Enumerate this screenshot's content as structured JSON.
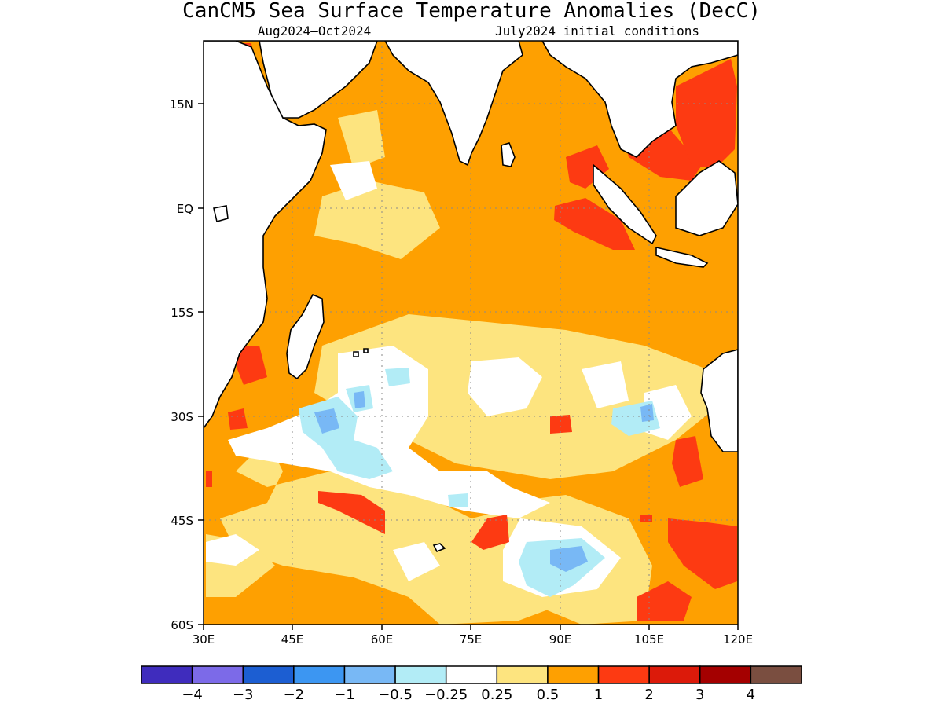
{
  "figure": {
    "title": "CanCM5 Sea Surface Temperature Anomalies (DecC)",
    "period": "Aug2024–Oct2024",
    "initial_conditions": "July2024 initial conditions"
  },
  "map": {
    "region": "Indian Ocean",
    "lon_range": [
      30,
      120
    ],
    "lat_range": [
      -60,
      24
    ],
    "lon_ticks": [
      "30E",
      "45E",
      "60E",
      "75E",
      "90E",
      "105E",
      "120E"
    ],
    "lat_ticks": [
      "15N",
      "EQ",
      "15S",
      "30S",
      "45S",
      "60S"
    ],
    "grid": true
  },
  "colorbar": {
    "labels": [
      "−4",
      "−3",
      "−2",
      "−1",
      "−0.5",
      "−0.25",
      "0.25",
      "0.5",
      "1",
      "2",
      "3",
      "4"
    ],
    "colors": [
      "#3f2cbd",
      "#7c6ae8",
      "#1c5ed2",
      "#3c96f2",
      "#78b8f5",
      "#b2ecf6",
      "#ffffff",
      "#fde47f",
      "#fea001",
      "#fd3a12",
      "#dc1a0a",
      "#a40000",
      "#7a4e40"
    ]
  }
}
